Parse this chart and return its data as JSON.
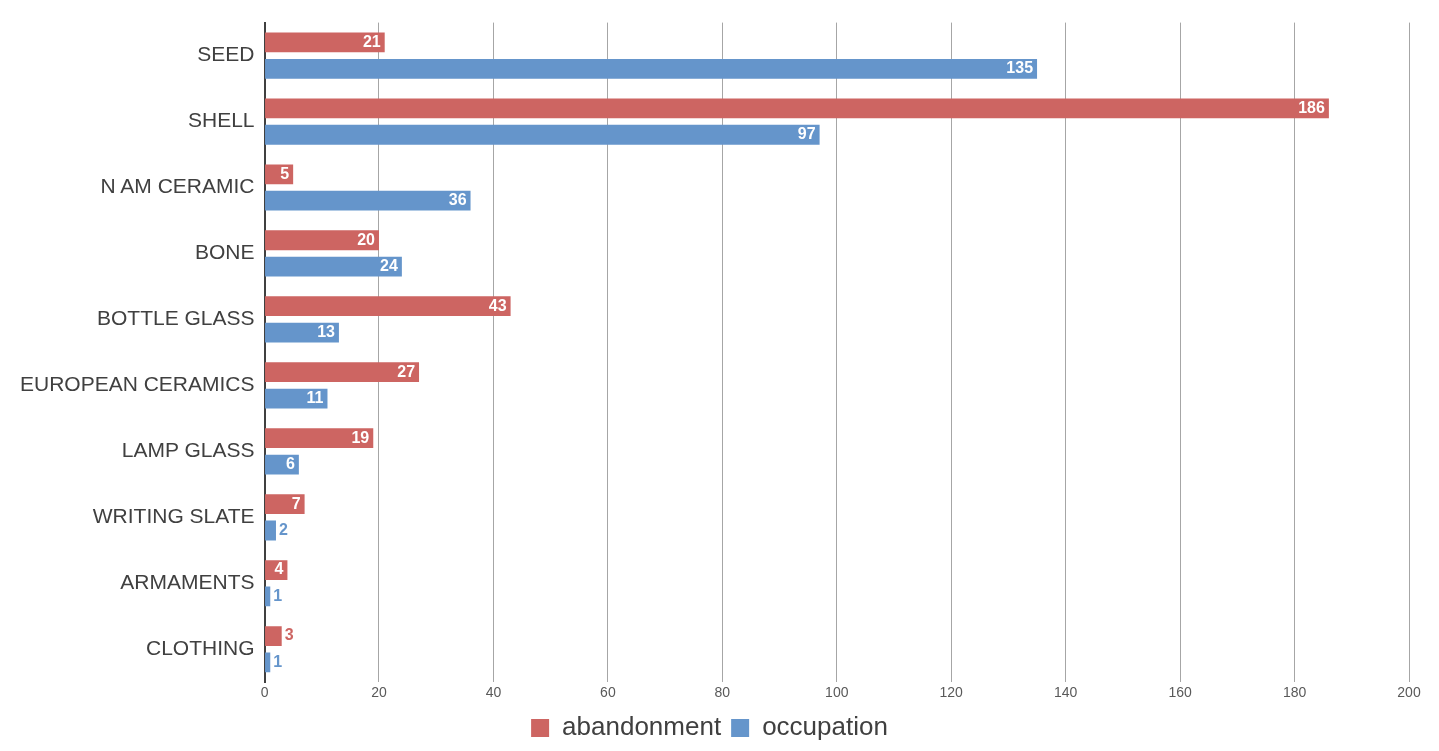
{
  "chart_data": {
    "type": "bar",
    "orientation": "horizontal",
    "categories": [
      "SEED",
      "SHELL",
      "N AM CERAMIC",
      "BONE",
      "BOTTLE GLASS",
      "EUROPEAN CERAMICS",
      "LAMP GLASS",
      "WRITING SLATE",
      "ARMAMENTS",
      "CLOTHING"
    ],
    "series": [
      {
        "name": "abandonment",
        "color": "#cd6562",
        "values": [
          21,
          186,
          5,
          20,
          43,
          27,
          19,
          7,
          4,
          3
        ]
      },
      {
        "name": "occupation",
        "color": "#6595cb",
        "values": [
          135,
          97,
          36,
          24,
          13,
          11,
          6,
          2,
          1,
          1
        ]
      }
    ],
    "xlim": [
      0,
      200
    ],
    "xticks": [
      0,
      20,
      40,
      60,
      80,
      100,
      120,
      140,
      160,
      180,
      200
    ],
    "grid": "x",
    "legend": "bottom",
    "data_labels": true
  }
}
